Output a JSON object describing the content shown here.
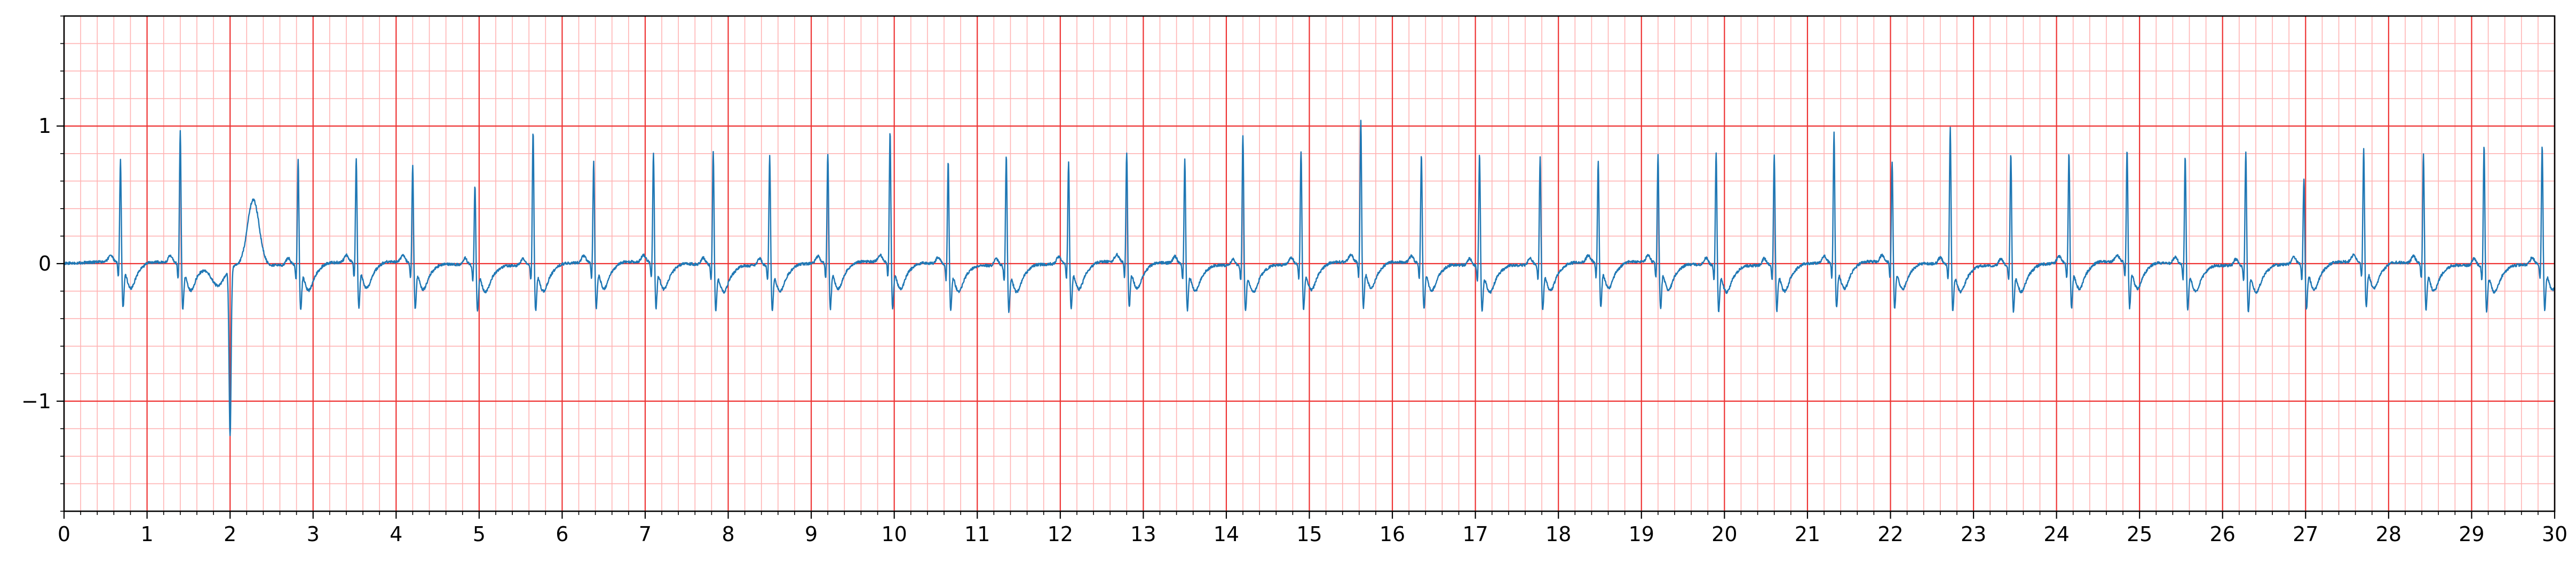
{
  "chart_data": {
    "type": "line",
    "title": "",
    "xlabel": "",
    "ylabel": "",
    "xlim": [
      0,
      30
    ],
    "ylim": [
      -1.8,
      1.8
    ],
    "x_major_ticks": [
      0,
      1,
      2,
      3,
      4,
      5,
      6,
      7,
      8,
      9,
      10,
      11,
      12,
      13,
      14,
      15,
      16,
      17,
      18,
      19,
      20,
      21,
      22,
      23,
      24,
      25,
      26,
      27,
      28,
      29,
      30
    ],
    "x_tick_labels": [
      "0",
      "1",
      "2",
      "3",
      "4",
      "5",
      "6",
      "7",
      "8",
      "9",
      "10",
      "11",
      "12",
      "13",
      "14",
      "15",
      "16",
      "17",
      "18",
      "19",
      "20",
      "21",
      "22",
      "23",
      "24",
      "25",
      "26",
      "27",
      "28",
      "29",
      "30"
    ],
    "y_major_ticks": [
      -1,
      0,
      1
    ],
    "y_tick_labels": [
      "−1",
      "0",
      "1"
    ],
    "grid": {
      "major": true,
      "minor": true,
      "x_minor_step": 0.2,
      "y_minor_step": 0.2,
      "major_color": "#ee3333",
      "minor_color": "#ffb3b3"
    },
    "background": "#ffffff",
    "series": [
      {
        "color": "#1f77b4",
        "baseline": 0.0,
        "artifact": {
          "x": 2.0,
          "min": -1.22,
          "wave_peak": 0.48,
          "wave_x": 2.28
        },
        "beats": [
          {
            "t": 0.68,
            "r": 0.76
          },
          {
            "t": 1.4,
            "r": 0.98
          },
          {
            "t": 2.82,
            "r": 0.79
          },
          {
            "t": 3.52,
            "r": 0.78
          },
          {
            "t": 4.2,
            "r": 0.73
          },
          {
            "t": 4.95,
            "r": 0.6
          },
          {
            "t": 5.65,
            "r": 1.0
          },
          {
            "t": 6.38,
            "r": 0.75
          },
          {
            "t": 7.1,
            "r": 0.82
          },
          {
            "t": 7.82,
            "r": 0.85
          },
          {
            "t": 8.5,
            "r": 0.82
          },
          {
            "t": 9.2,
            "r": 0.82
          },
          {
            "t": 9.95,
            "r": 0.97
          },
          {
            "t": 10.65,
            "r": 0.77
          },
          {
            "t": 11.35,
            "r": 0.82
          },
          {
            "t": 12.1,
            "r": 0.75
          },
          {
            "t": 12.8,
            "r": 0.82
          },
          {
            "t": 13.5,
            "r": 0.78
          },
          {
            "t": 14.2,
            "r": 0.97
          },
          {
            "t": 14.9,
            "r": 0.84
          },
          {
            "t": 15.62,
            "r": 1.05
          },
          {
            "t": 16.35,
            "r": 0.82
          },
          {
            "t": 17.05,
            "r": 0.84
          },
          {
            "t": 17.78,
            "r": 0.8
          },
          {
            "t": 18.48,
            "r": 0.75
          },
          {
            "t": 19.2,
            "r": 0.8
          },
          {
            "t": 19.9,
            "r": 0.84
          },
          {
            "t": 20.6,
            "r": 0.82
          },
          {
            "t": 21.32,
            "r": 0.97
          },
          {
            "t": 22.02,
            "r": 0.76
          },
          {
            "t": 22.72,
            "r": 1.02
          },
          {
            "t": 23.45,
            "r": 0.84
          },
          {
            "t": 24.15,
            "r": 0.82
          },
          {
            "t": 24.85,
            "r": 0.84
          },
          {
            "t": 25.55,
            "r": 0.8
          },
          {
            "t": 26.28,
            "r": 0.85
          },
          {
            "t": 26.98,
            "r": 0.64
          },
          {
            "t": 27.7,
            "r": 0.84
          },
          {
            "t": 28.42,
            "r": 0.82
          },
          {
            "t": 29.15,
            "r": 0.9
          },
          {
            "t": 29.85,
            "r": 0.88
          }
        ]
      }
    ]
  }
}
